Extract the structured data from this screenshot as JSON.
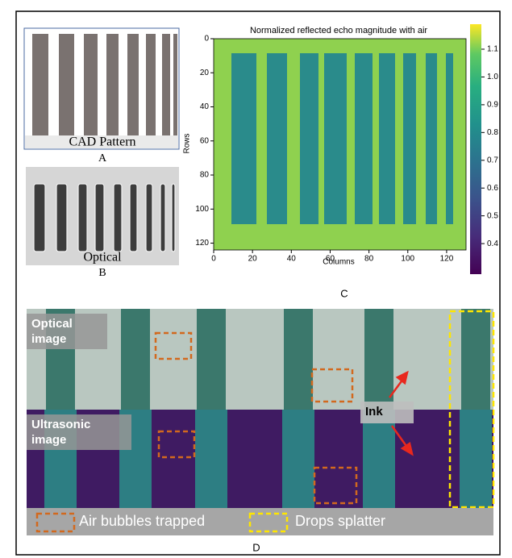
{
  "panel_a": {
    "caption": "CAD Pattern",
    "label": "A"
  },
  "panel_b": {
    "caption": "Optical",
    "label": "B"
  },
  "panel_c": {
    "title": "Normalized reflected echo magnitude with air",
    "x_label": "Columns",
    "y_label": "Rows",
    "xlim": [
      0,
      130
    ],
    "ylim": [
      0,
      124
    ],
    "xticks": [
      0,
      20,
      40,
      60,
      80,
      100,
      120
    ],
    "yticks": [
      0,
      20,
      40,
      60,
      80,
      100,
      120
    ],
    "colorbar_lim": [
      0.29,
      1.19
    ],
    "colorbar_ticks": [
      0.4,
      0.5,
      0.6,
      0.7,
      0.8,
      0.9,
      {
        "value": 1,
        "label": "1.0"
      },
      1.1
    ],
    "label": "C"
  },
  "panel_d": {
    "optical_label": "Optical image",
    "ultrasonic_label": "Ultrasonic image",
    "ink_label": "Ink",
    "legend": [
      "Air bubbles trapped",
      "Drops splatter"
    ],
    "label": "D"
  }
}
